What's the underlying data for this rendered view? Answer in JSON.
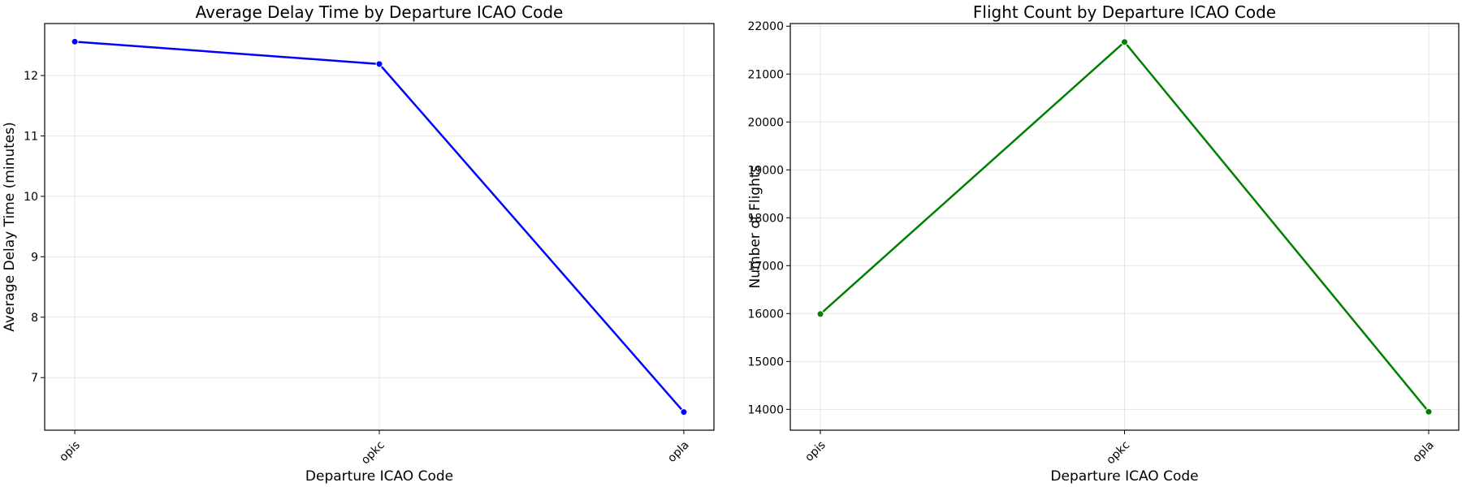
{
  "chart_data": [
    {
      "type": "line",
      "title": "Average Delay Time by Departure ICAO Code",
      "xlabel": "Departure ICAO Code",
      "ylabel": "Average Delay Time (minutes)",
      "categories": [
        "opis",
        "opkc",
        "opla"
      ],
      "series": [
        {
          "values": [
            12.56,
            12.19,
            6.43
          ],
          "color": "#0000ff"
        }
      ],
      "ylim": [
        6.13,
        12.86
      ],
      "yticks": [
        7,
        8,
        9,
        10,
        11,
        12
      ],
      "grid": true,
      "marker": "circle"
    },
    {
      "type": "line",
      "title": "Flight Count by Departure ICAO Code",
      "xlabel": "Departure ICAO Code",
      "ylabel": "Number of Flights",
      "categories": [
        "opis",
        "opkc",
        "opla"
      ],
      "series": [
        {
          "values": [
            15990,
            21670,
            13950
          ],
          "color": "#008000"
        }
      ],
      "ylim": [
        13565,
        22055
      ],
      "yticks": [
        14000,
        15000,
        16000,
        17000,
        18000,
        19000,
        20000,
        21000,
        22000
      ],
      "grid": true,
      "marker": "circle"
    }
  ]
}
